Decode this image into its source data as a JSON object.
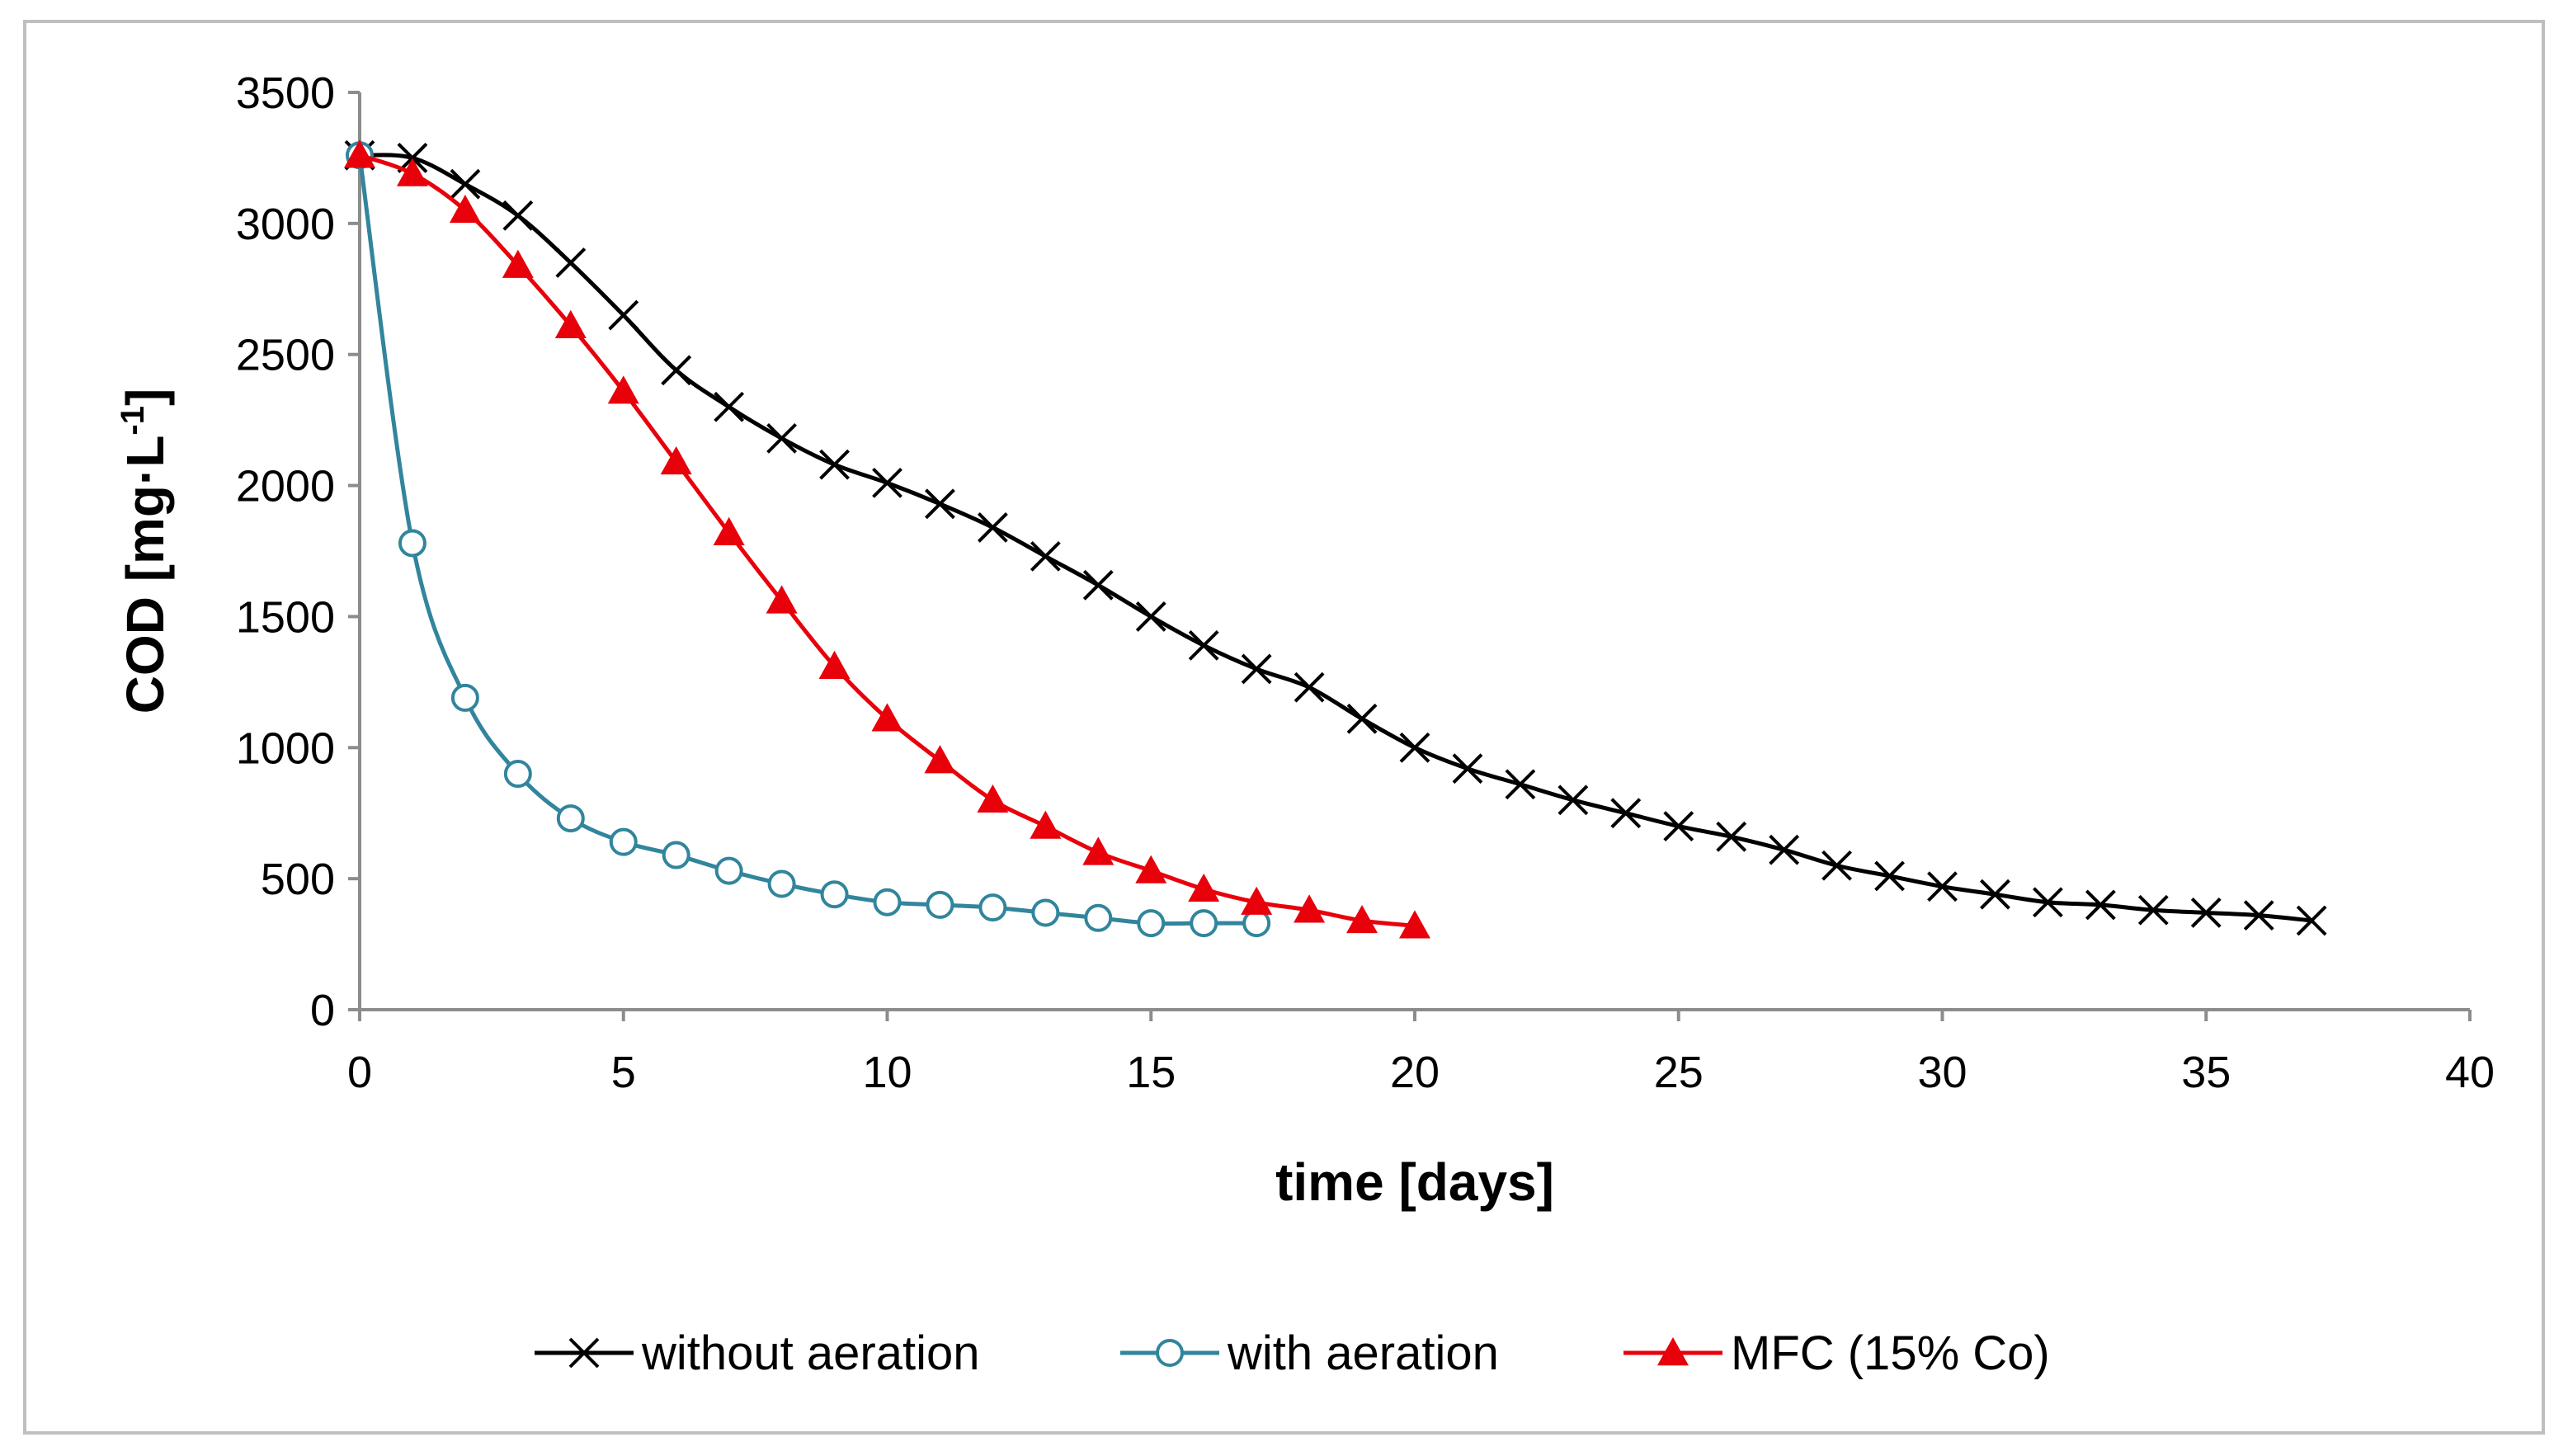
{
  "chart_data": {
    "type": "line",
    "title": "",
    "xlabel": "time [days]",
    "ylabel_main": "COD [mg·L",
    "ylabel_sup": "-1",
    "ylabel_end": "]",
    "xlim": [
      0,
      40
    ],
    "ylim": [
      0,
      3500
    ],
    "x_ticks": [
      0,
      5,
      10,
      15,
      20,
      25,
      30,
      35,
      40
    ],
    "y_ticks": [
      0,
      500,
      1000,
      1500,
      2000,
      2500,
      3000,
      3500
    ],
    "grid": false,
    "legend_position": "bottom",
    "series": [
      {
        "name": "without aeration",
        "color": "#000000",
        "marker": "x",
        "x": [
          0,
          1,
          2,
          3,
          4,
          5,
          6,
          7,
          8,
          9,
          10,
          11,
          12,
          13,
          14,
          15,
          16,
          17,
          18,
          19,
          20,
          21,
          22,
          23,
          24,
          25,
          26,
          27,
          28,
          29,
          30,
          31,
          32,
          33,
          34,
          35,
          36,
          37
        ],
        "values": [
          3260,
          3250,
          3150,
          3030,
          2850,
          2650,
          2440,
          2300,
          2180,
          2080,
          2010,
          1930,
          1840,
          1730,
          1620,
          1500,
          1390,
          1300,
          1230,
          1110,
          1000,
          920,
          860,
          800,
          750,
          700,
          660,
          610,
          550,
          510,
          470,
          440,
          410,
          400,
          380,
          370,
          360,
          340
        ]
      },
      {
        "name": "with aeration",
        "color": "#31859c",
        "marker": "circle",
        "x": [
          0,
          1,
          2,
          3,
          4,
          5,
          6,
          7,
          8,
          9,
          10,
          11,
          12,
          13,
          14,
          15,
          16,
          17
        ],
        "values": [
          3260,
          1780,
          1190,
          900,
          730,
          640,
          590,
          530,
          480,
          440,
          410,
          400,
          390,
          370,
          350,
          330,
          330,
          330
        ]
      },
      {
        "name": "MFC (15% Co)",
        "color": "#e8000b",
        "marker": "triangle",
        "x": [
          0,
          1,
          2,
          3,
          4,
          5,
          6,
          7,
          8,
          9,
          10,
          11,
          12,
          13,
          14,
          15,
          16,
          17,
          18,
          19,
          20
        ],
        "values": [
          3260,
          3190,
          3050,
          2840,
          2610,
          2360,
          2090,
          1820,
          1560,
          1310,
          1110,
          950,
          800,
          700,
          600,
          530,
          460,
          410,
          380,
          340,
          320
        ]
      }
    ]
  }
}
